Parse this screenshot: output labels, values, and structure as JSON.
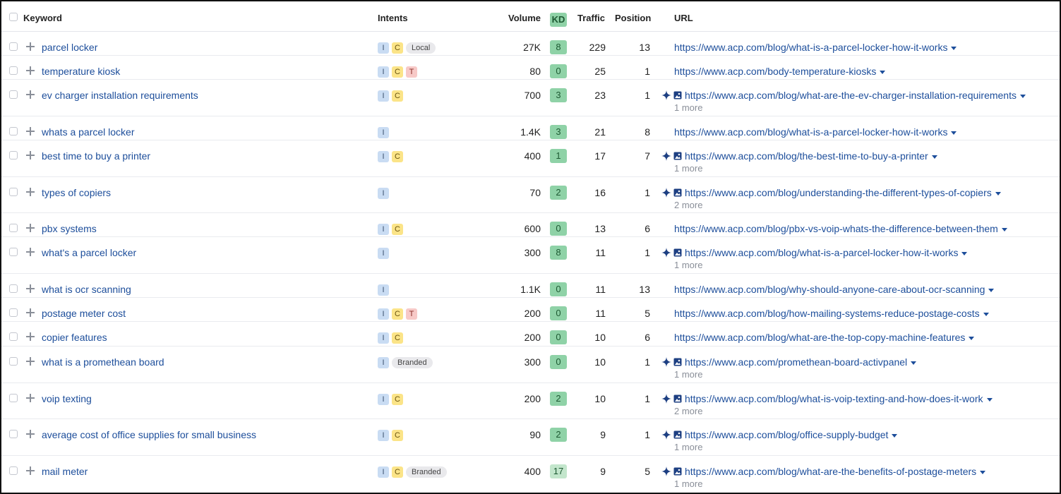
{
  "header": {
    "keyword": "Keyword",
    "intents": "Intents",
    "volume": "Volume",
    "kd": "KD",
    "traffic": "Traffic",
    "position": "Position",
    "url": "URL"
  },
  "icons": {
    "checkbox": "checkbox-icon",
    "add": "plus-icon",
    "featured": "sparkle-icon",
    "image": "image-icon",
    "dropdown": "chevron-down-icon"
  },
  "colors": {
    "link": "#1d4e9b",
    "intent_i": "#c9dcf3",
    "intent_c": "#fbe488",
    "intent_t": "#f7c9c7",
    "kd": "#8fd2a7"
  },
  "rows": [
    {
      "keyword": "parcel locker",
      "intents": [
        "I",
        "C"
      ],
      "tags": [
        "Local"
      ],
      "volume": "27K",
      "kd": "8",
      "traffic": "229",
      "position": "13",
      "url": "https://www.acp.com/blog/what-is-a-parcel-locker-how-it-works",
      "more": ""
    },
    {
      "keyword": "temperature kiosk",
      "intents": [
        "I",
        "C",
        "T"
      ],
      "tags": [],
      "volume": "80",
      "kd": "0",
      "traffic": "25",
      "position": "1",
      "url": "https://www.acp.com/body-temperature-kiosks",
      "more": ""
    },
    {
      "keyword": "ev charger installation requirements",
      "intents": [
        "I",
        "C"
      ],
      "tags": [],
      "volume": "700",
      "kd": "3",
      "traffic": "23",
      "position": "1",
      "url": "https://www.acp.com/blog/what-are-the-ev-charger-installation-requirements",
      "more": "1 more"
    },
    {
      "keyword": "whats a parcel locker",
      "intents": [
        "I"
      ],
      "tags": [],
      "volume": "1.4K",
      "kd": "3",
      "traffic": "21",
      "position": "8",
      "url": "https://www.acp.com/blog/what-is-a-parcel-locker-how-it-works",
      "more": ""
    },
    {
      "keyword": "best time to buy a printer",
      "intents": [
        "I",
        "C"
      ],
      "tags": [],
      "volume": "400",
      "kd": "1",
      "traffic": "17",
      "position": "7",
      "url": "https://www.acp.com/blog/the-best-time-to-buy-a-printer",
      "more": "1 more"
    },
    {
      "keyword": "types of copiers",
      "intents": [
        "I"
      ],
      "tags": [],
      "volume": "70",
      "kd": "2",
      "traffic": "16",
      "position": "1",
      "url": "https://www.acp.com/blog/understanding-the-different-types-of-copiers",
      "more": "2 more"
    },
    {
      "keyword": "pbx systems",
      "intents": [
        "I",
        "C"
      ],
      "tags": [],
      "volume": "600",
      "kd": "0",
      "traffic": "13",
      "position": "6",
      "url": "https://www.acp.com/blog/pbx-vs-voip-whats-the-difference-between-them",
      "more": ""
    },
    {
      "keyword": "what's a parcel locker",
      "intents": [
        "I"
      ],
      "tags": [],
      "volume": "300",
      "kd": "8",
      "traffic": "11",
      "position": "1",
      "url": "https://www.acp.com/blog/what-is-a-parcel-locker-how-it-works",
      "more": "1 more"
    },
    {
      "keyword": "what is ocr scanning",
      "intents": [
        "I"
      ],
      "tags": [],
      "volume": "1.1K",
      "kd": "0",
      "traffic": "11",
      "position": "13",
      "url": "https://www.acp.com/blog/why-should-anyone-care-about-ocr-scanning",
      "more": ""
    },
    {
      "keyword": "postage meter cost",
      "intents": [
        "I",
        "C",
        "T"
      ],
      "tags": [],
      "volume": "200",
      "kd": "0",
      "traffic": "11",
      "position": "5",
      "url": "https://www.acp.com/blog/how-mailing-systems-reduce-postage-costs",
      "more": ""
    },
    {
      "keyword": "copier features",
      "intents": [
        "I",
        "C"
      ],
      "tags": [],
      "volume": "200",
      "kd": "0",
      "traffic": "10",
      "position": "6",
      "url": "https://www.acp.com/blog/what-are-the-top-copy-machine-features",
      "more": ""
    },
    {
      "keyword": "what is a promethean board",
      "intents": [
        "I"
      ],
      "tags": [
        "Branded"
      ],
      "volume": "300",
      "kd": "0",
      "traffic": "10",
      "position": "1",
      "url": "https://www.acp.com/promethean-board-activpanel",
      "more": "1 more"
    },
    {
      "keyword": "voip texting",
      "intents": [
        "I",
        "C"
      ],
      "tags": [],
      "volume": "200",
      "kd": "2",
      "traffic": "10",
      "position": "1",
      "url": "https://www.acp.com/blog/what-is-voip-texting-and-how-does-it-work",
      "more": "2 more"
    },
    {
      "keyword": "average cost of office supplies for small business",
      "intents": [
        "I",
        "C"
      ],
      "tags": [],
      "volume": "90",
      "kd": "2",
      "traffic": "9",
      "position": "1",
      "url": "https://www.acp.com/blog/office-supply-budget",
      "more": "1 more"
    },
    {
      "keyword": "mail meter",
      "intents": [
        "I",
        "C"
      ],
      "tags": [
        "Branded"
      ],
      "volume": "400",
      "kd": "17",
      "traffic": "9",
      "position": "5",
      "url": "https://www.acp.com/blog/what-are-the-benefits-of-postage-meters",
      "more": "1 more"
    }
  ]
}
